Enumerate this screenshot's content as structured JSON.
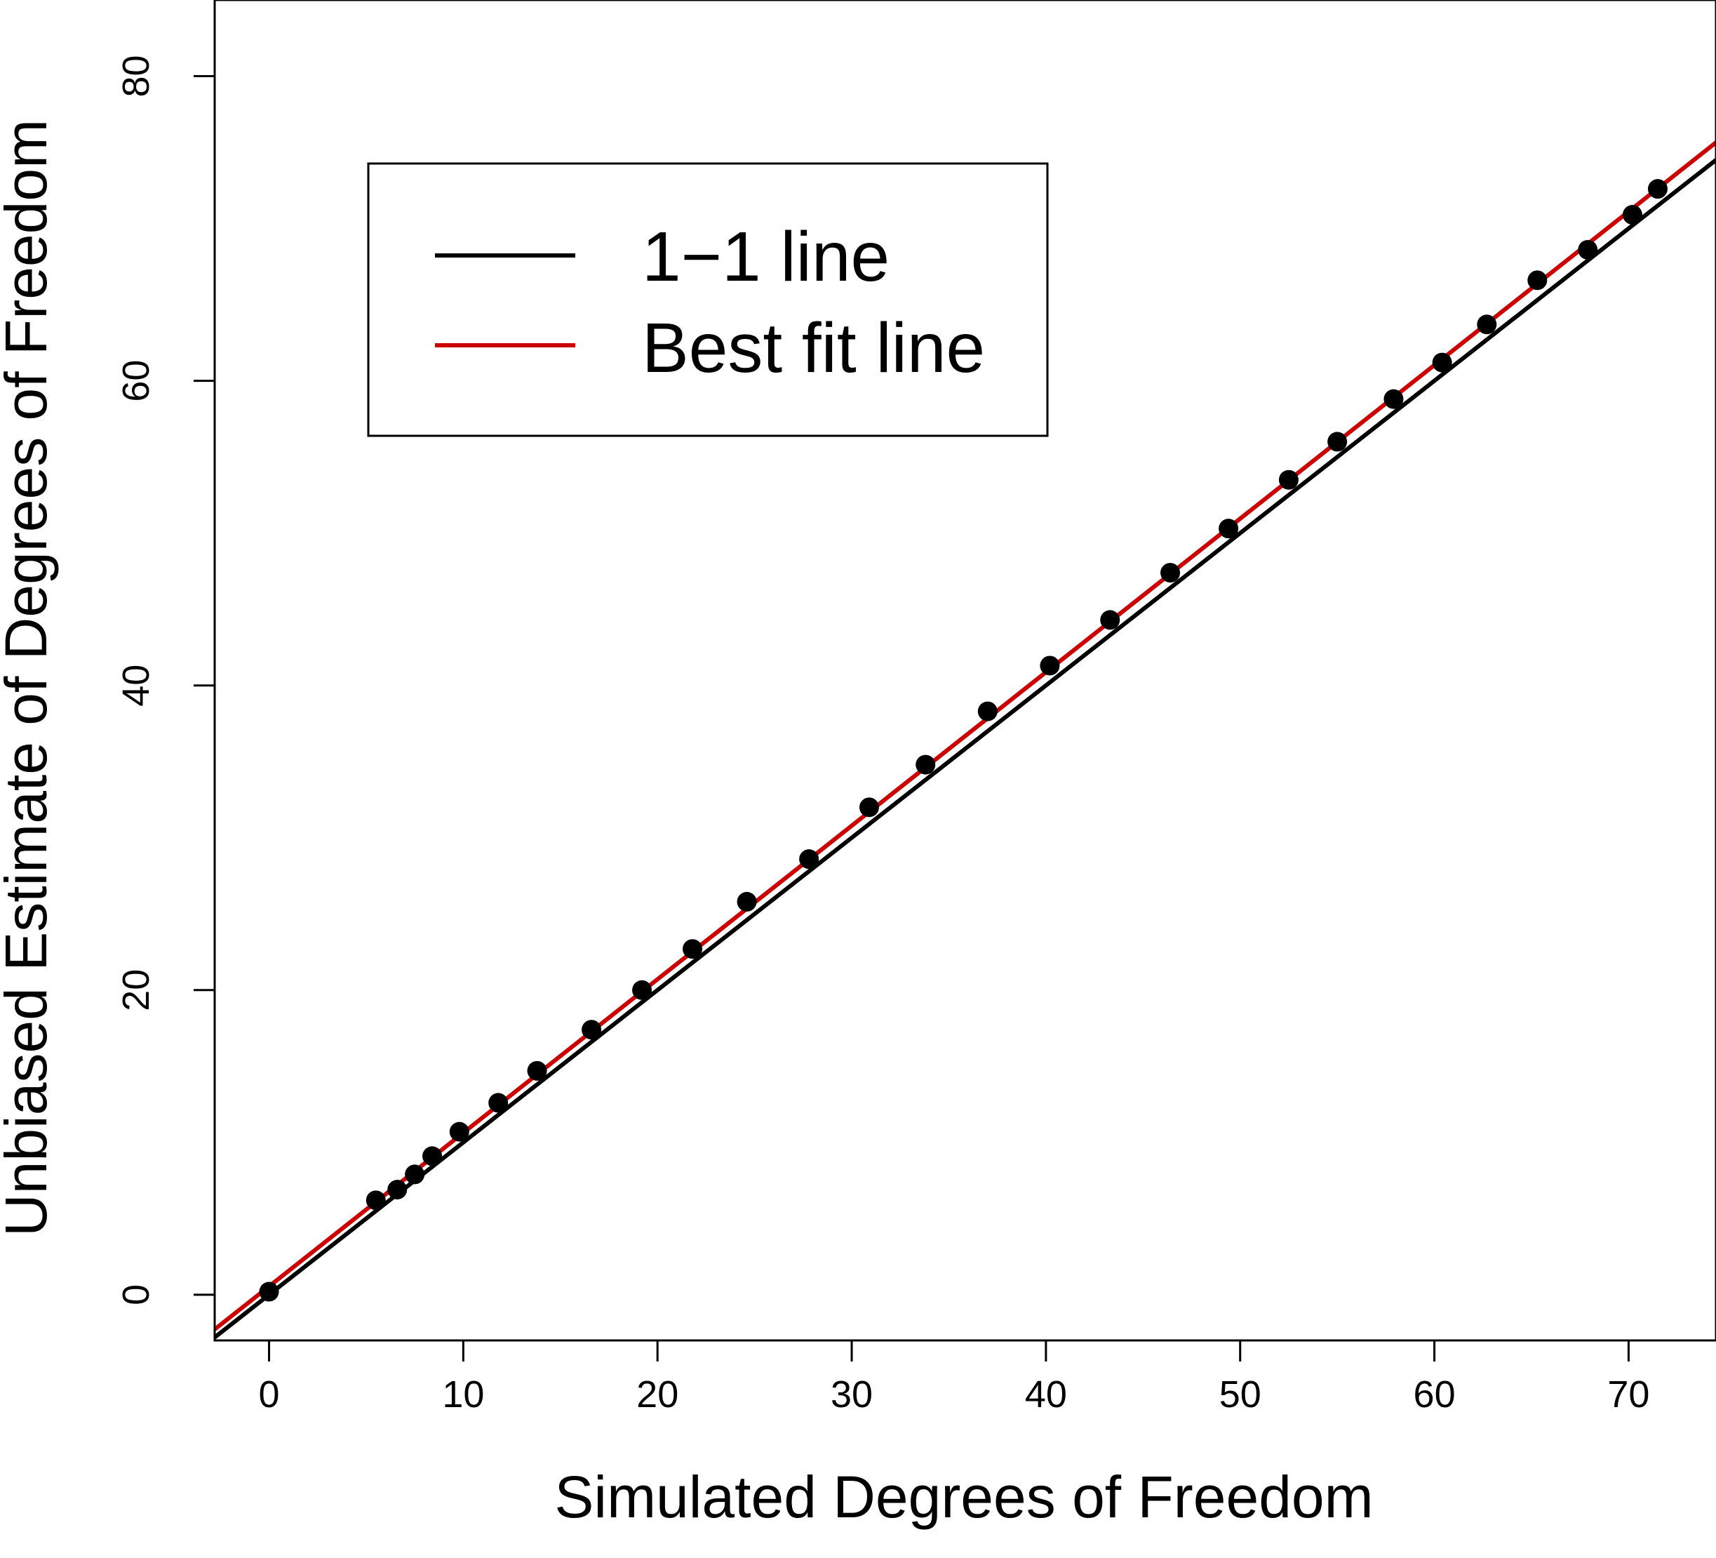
{
  "chart_data": {
    "type": "scatter",
    "xlabel": "Simulated Degrees of Freedom",
    "ylabel": "Unbiased Estimate of Degrees of Freedom",
    "xlim": [
      -2.8,
      74.5
    ],
    "ylim": [
      -3,
      85
    ],
    "x_ticks": [
      0,
      10,
      20,
      30,
      40,
      50,
      60,
      70
    ],
    "y_ticks": [
      0,
      20,
      40,
      60,
      80
    ],
    "grid": false,
    "legend_position": "top-left",
    "points": {
      "x": [
        0,
        5.5,
        6.6,
        7.5,
        8.4,
        9.8,
        11.8,
        13.8,
        16.6,
        19.2,
        21.8,
        24.6,
        27.8,
        30.9,
        33.8,
        37.0,
        40.2,
        43.3,
        46.4,
        49.4,
        52.5,
        55.0,
        57.9,
        60.4,
        62.7,
        65.3,
        67.9,
        70.2,
        71.5
      ],
      "y": [
        0.2,
        6.2,
        6.9,
        7.9,
        9.1,
        10.7,
        12.6,
        14.7,
        17.4,
        20.0,
        22.7,
        25.8,
        28.6,
        32.0,
        34.8,
        38.3,
        41.3,
        44.3,
        47.4,
        50.3,
        53.5,
        56.0,
        58.8,
        61.2,
        63.7,
        66.6,
        68.6,
        70.9,
        72.6
      ]
    },
    "lines": [
      {
        "name": "1−1 line",
        "color": "#000000",
        "intercept": 0,
        "slope": 1
      },
      {
        "name": "Best fit line",
        "color": "#cc0000",
        "intercept": 0.55,
        "slope": 1.008
      }
    ],
    "legend": {
      "entries": [
        {
          "label": "1−1 line",
          "color": "#000000"
        },
        {
          "label": "Best fit line",
          "color": "#cc0000"
        }
      ]
    }
  }
}
